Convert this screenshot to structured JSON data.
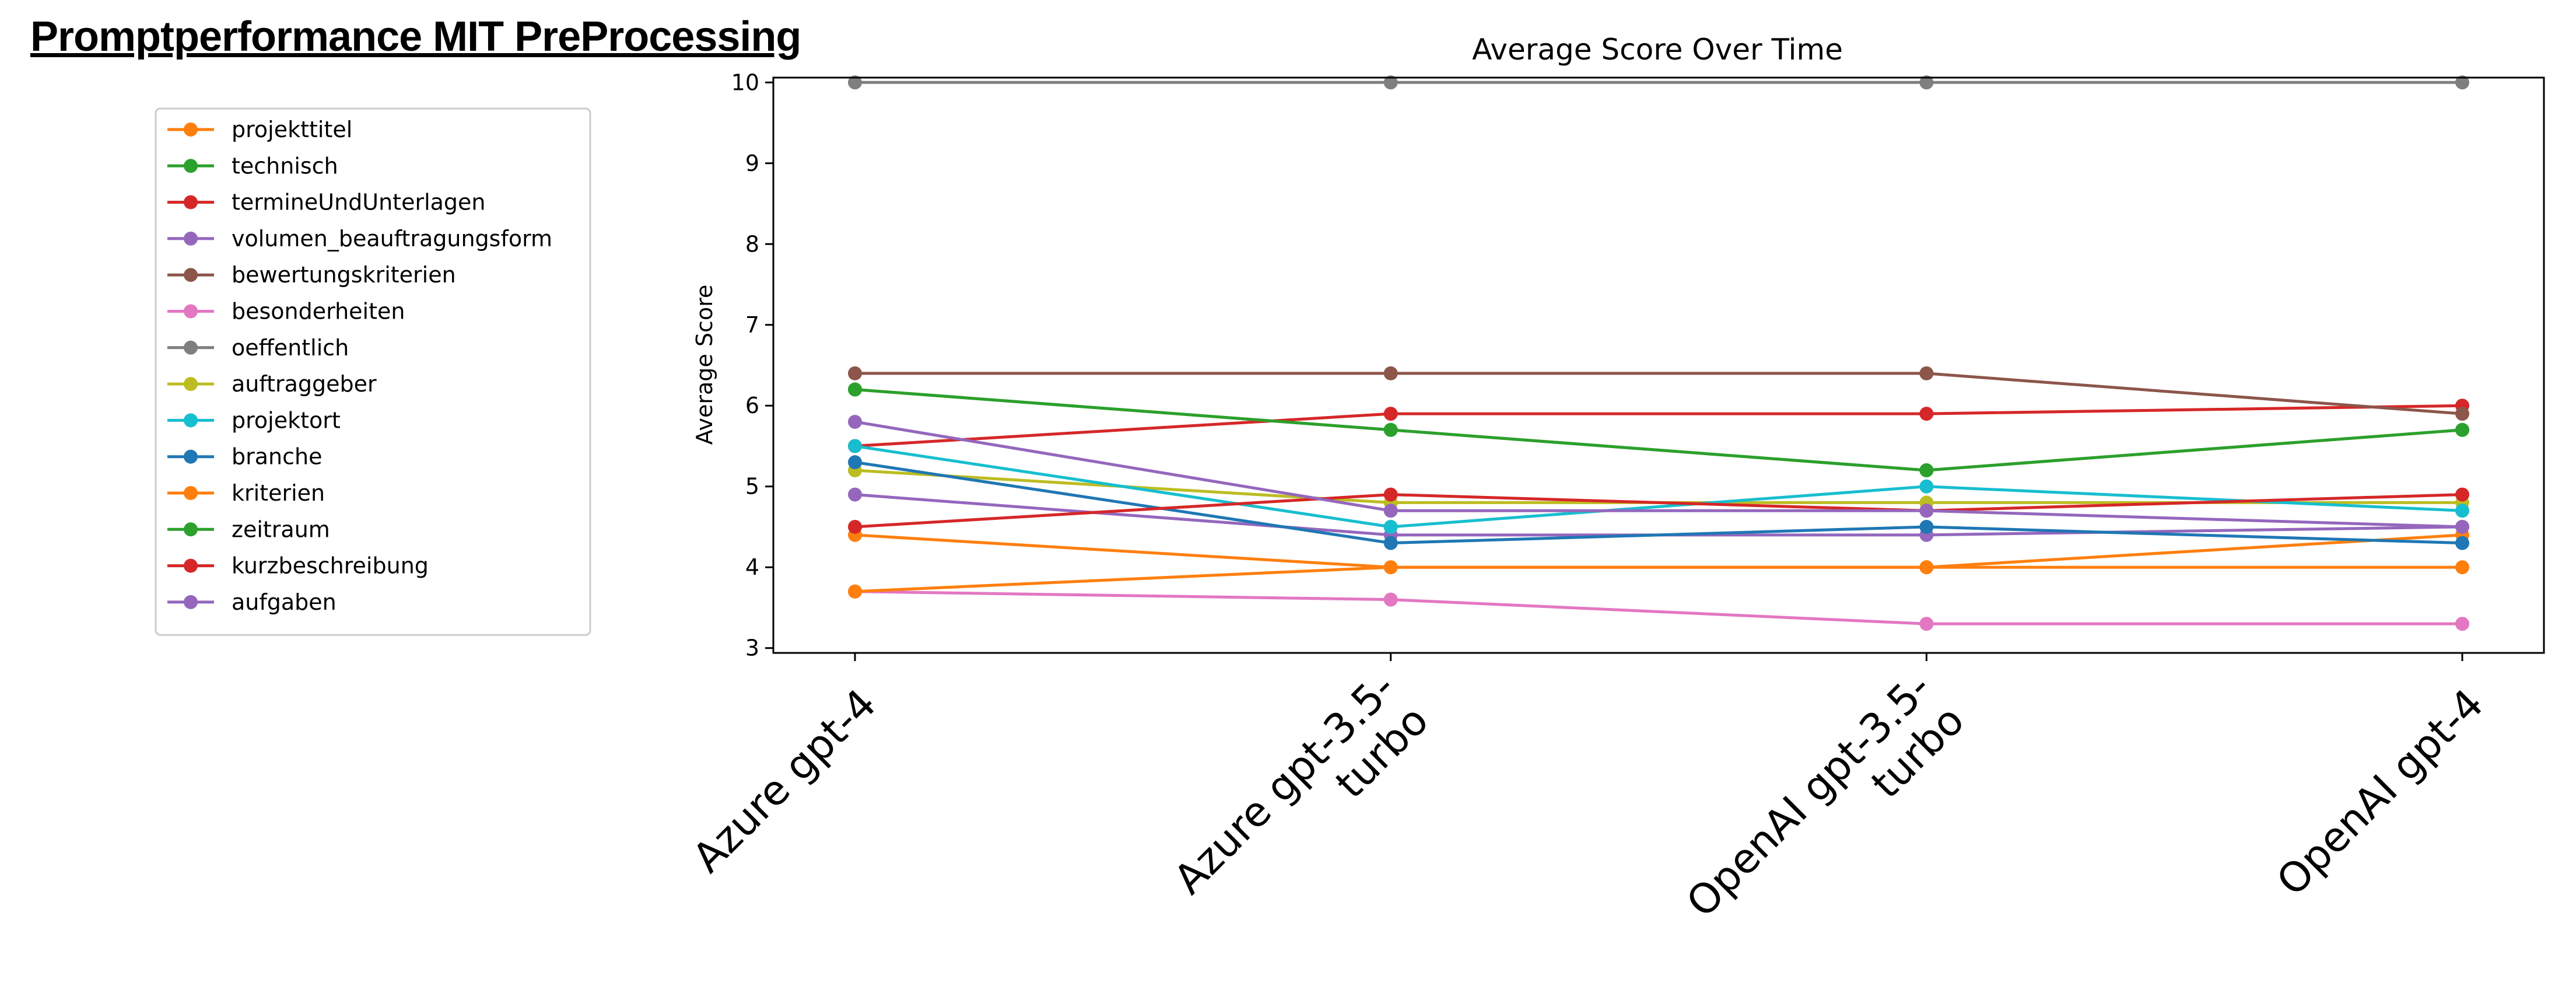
{
  "slide": {
    "title": "Promptperformance MIT PreProcessing"
  },
  "chart_data": {
    "type": "line",
    "title": "Average Score Over Time",
    "xlabel": "",
    "ylabel": "Average Score",
    "categories": [
      "Azure gpt-4",
      "Azure gpt-3.5-turbo",
      "OpenAI gpt-3.5-turbo",
      "OpenAI gpt-4"
    ],
    "category_label_lines": [
      [
        "Azure gpt-4"
      ],
      [
        "Azure gpt-3.5-",
        "turbo"
      ],
      [
        "OpenAI gpt-3.5-",
        "turbo"
      ],
      [
        "OpenAI gpt-4"
      ]
    ],
    "ylim": [
      2.94,
      10.06
    ],
    "yticks": [
      3,
      4,
      5,
      6,
      7,
      8,
      9,
      10
    ],
    "grid": false,
    "legend_position": "left",
    "series": [
      {
        "name": "projekttitel",
        "color": "#ff7f0e",
        "values": [
          4.4,
          4.0,
          4.0,
          4.4
        ]
      },
      {
        "name": "technisch",
        "color": "#2ca02c",
        "values": [
          6.2,
          5.7,
          5.2,
          5.7
        ]
      },
      {
        "name": "termineUndUnterlagen",
        "color": "#d62728",
        "values": [
          5.5,
          5.9,
          5.9,
          6.0
        ]
      },
      {
        "name": "volumen_beauftragungsform",
        "color": "#9467bd",
        "values": [
          4.9,
          4.4,
          4.4,
          4.5
        ]
      },
      {
        "name": "bewertungskriterien",
        "color": "#8c564b",
        "values": [
          6.4,
          6.4,
          6.4,
          5.9
        ]
      },
      {
        "name": "besonderheiten",
        "color": "#e377c2",
        "values": [
          3.7,
          3.6,
          3.3,
          3.3
        ]
      },
      {
        "name": "oeffentlich",
        "color": "#7f7f7f",
        "values": [
          10,
          10,
          10,
          10
        ]
      },
      {
        "name": "auftraggeber",
        "color": "#bcbd22",
        "values": [
          5.2,
          4.8,
          4.8,
          4.8
        ]
      },
      {
        "name": "projektort",
        "color": "#17becf",
        "values": [
          5.5,
          4.5,
          5.0,
          4.7
        ]
      },
      {
        "name": "branche",
        "color": "#1f77b4",
        "values": [
          5.3,
          4.3,
          4.5,
          4.3
        ]
      },
      {
        "name": "kriterien",
        "color": "#ff7f0e",
        "values": [
          3.7,
          4.0,
          4.0,
          4.0
        ]
      },
      {
        "name": "zeitraum",
        "color": "#2ca02c",
        "values": [
          6.2,
          5.7,
          5.2,
          5.7
        ]
      },
      {
        "name": "kurzbeschreibung",
        "color": "#d62728",
        "values": [
          4.5,
          4.9,
          4.7,
          4.9
        ]
      },
      {
        "name": "aufgaben",
        "color": "#9467bd",
        "values": [
          5.8,
          4.7,
          4.7,
          4.5
        ]
      }
    ]
  }
}
